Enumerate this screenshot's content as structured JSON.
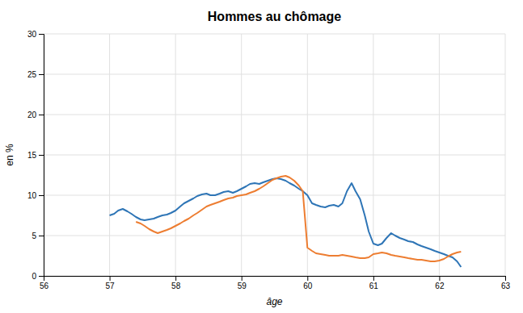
{
  "chart_data": {
    "type": "line",
    "title": "Hommes au chômage",
    "x_label": "âge",
    "y_label": "en %",
    "xlim": [
      56,
      63
    ],
    "ylim": [
      0,
      30
    ],
    "xticks": [
      56,
      57,
      58,
      59,
      60,
      61,
      62,
      63
    ],
    "yticks": [
      0,
      5,
      10,
      15,
      20,
      25,
      30
    ],
    "grid": true,
    "series": [
      {
        "color": "#2e75b6",
        "x": [
          57.0,
          57.07,
          57.13,
          57.2,
          57.27,
          57.33,
          57.4,
          57.47,
          57.53,
          57.6,
          57.67,
          57.73,
          57.8,
          57.87,
          57.93,
          58.0,
          58.07,
          58.13,
          58.2,
          58.27,
          58.33,
          58.4,
          58.47,
          58.53,
          58.6,
          58.67,
          58.73,
          58.8,
          58.87,
          58.93,
          59.0,
          59.07,
          59.13,
          59.2,
          59.27,
          59.33,
          59.4,
          59.47,
          59.53,
          59.6,
          59.67,
          59.73,
          59.8,
          59.87,
          59.93,
          60.0,
          60.07,
          60.13,
          60.2,
          60.27,
          60.33,
          60.4,
          60.47,
          60.53,
          60.6,
          60.67,
          60.73,
          60.8,
          60.87,
          60.93,
          61.0,
          61.07,
          61.13,
          61.2,
          61.27,
          61.33,
          61.4,
          61.47,
          61.53,
          61.6,
          61.67,
          61.73,
          61.8,
          61.87,
          61.93,
          62.0,
          62.07,
          62.13,
          62.2,
          62.27,
          62.33
        ],
        "values": [
          7.5,
          7.7,
          8.1,
          8.3,
          8.0,
          7.7,
          7.3,
          7.0,
          6.9,
          7.0,
          7.1,
          7.3,
          7.5,
          7.6,
          7.8,
          8.1,
          8.6,
          9.0,
          9.3,
          9.6,
          9.9,
          10.1,
          10.2,
          10.0,
          10.0,
          10.2,
          10.4,
          10.5,
          10.3,
          10.5,
          10.8,
          11.1,
          11.4,
          11.5,
          11.4,
          11.6,
          11.8,
          12.0,
          12.1,
          12.0,
          11.8,
          11.5,
          11.2,
          10.8,
          10.5,
          10.0,
          9.0,
          8.8,
          8.6,
          8.5,
          8.7,
          8.8,
          8.6,
          9.0,
          10.5,
          11.5,
          10.5,
          9.5,
          7.5,
          5.5,
          4.0,
          3.8,
          4.0,
          4.7,
          5.3,
          5.0,
          4.7,
          4.5,
          4.3,
          4.2,
          3.9,
          3.7,
          3.5,
          3.3,
          3.1,
          2.9,
          2.7,
          2.5,
          2.3,
          1.8,
          1.1
        ]
      },
      {
        "color": "#ed7d31",
        "x": [
          57.4,
          57.47,
          57.53,
          57.6,
          57.67,
          57.73,
          57.8,
          57.87,
          57.93,
          58.0,
          58.07,
          58.13,
          58.2,
          58.27,
          58.33,
          58.4,
          58.47,
          58.53,
          58.6,
          58.67,
          58.73,
          58.8,
          58.87,
          58.93,
          59.0,
          59.07,
          59.13,
          59.2,
          59.27,
          59.33,
          59.4,
          59.47,
          59.53,
          59.6,
          59.67,
          59.73,
          59.8,
          59.87,
          59.93,
          60.0,
          60.07,
          60.13,
          60.2,
          60.27,
          60.33,
          60.4,
          60.47,
          60.53,
          60.6,
          60.67,
          60.73,
          60.8,
          60.87,
          60.93,
          61.0,
          61.07,
          61.13,
          61.2,
          61.27,
          61.33,
          61.4,
          61.47,
          61.53,
          61.6,
          61.67,
          61.73,
          61.8,
          61.87,
          61.93,
          62.0,
          62.07,
          62.13,
          62.2,
          62.27,
          62.33
        ],
        "values": [
          6.7,
          6.5,
          6.2,
          5.8,
          5.5,
          5.3,
          5.5,
          5.7,
          5.9,
          6.2,
          6.5,
          6.8,
          7.1,
          7.5,
          7.8,
          8.2,
          8.6,
          8.8,
          9.0,
          9.2,
          9.4,
          9.6,
          9.7,
          9.9,
          10.0,
          10.1,
          10.3,
          10.5,
          10.8,
          11.1,
          11.5,
          11.9,
          12.1,
          12.3,
          12.4,
          12.2,
          11.8,
          11.2,
          10.5,
          3.5,
          3.1,
          2.8,
          2.7,
          2.6,
          2.5,
          2.5,
          2.5,
          2.6,
          2.5,
          2.4,
          2.3,
          2.2,
          2.2,
          2.3,
          2.7,
          2.8,
          2.9,
          2.8,
          2.6,
          2.5,
          2.4,
          2.3,
          2.2,
          2.1,
          2.0,
          2.0,
          1.9,
          1.8,
          1.8,
          1.9,
          2.1,
          2.4,
          2.7,
          2.9,
          3.0
        ]
      }
    ]
  }
}
